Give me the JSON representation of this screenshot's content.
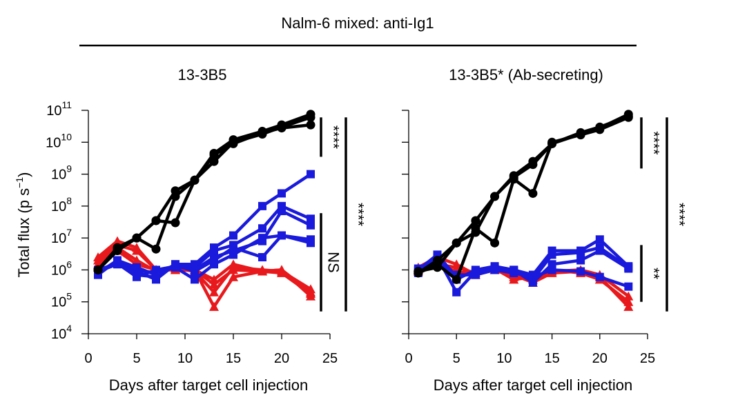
{
  "figure": {
    "title": "Nalm-6 mixed: anti-Ig1",
    "ylabel_main": "Total flux (p s",
    "ylabel_exp": "−1",
    "ylabel_close": ")",
    "xlabel": "Days after target cell injection",
    "colors": {
      "black": "#000000",
      "red": "#e8191c",
      "blue": "#1a1adc"
    }
  },
  "chart_data": [
    {
      "type": "line",
      "title": "13-3B5",
      "xlabel": "Days after target cell injection",
      "ylabel": "Total flux (p s−1)",
      "xlim": [
        0,
        25
      ],
      "ylim": [
        10000,
        100000000000
      ],
      "yscale": "log",
      "xticks": [
        "0",
        "5",
        "10",
        "15",
        "20",
        "25"
      ],
      "yticks": [
        {
          "base": "10",
          "exp": "4"
        },
        {
          "base": "10",
          "exp": "5"
        },
        {
          "base": "10",
          "exp": "6"
        },
        {
          "base": "10",
          "exp": "7"
        },
        {
          "base": "10",
          "exp": "8"
        },
        {
          "base": "10",
          "exp": "9"
        },
        {
          "base": "10",
          "exp": "10"
        },
        {
          "base": "10",
          "exp": "11"
        }
      ],
      "series": [
        {
          "group": "black",
          "marker": "circle",
          "x": [
            1,
            3,
            5,
            7,
            9,
            11,
            13,
            15,
            18,
            20,
            23
          ],
          "y": [
            1000000,
            5000000,
            10000000,
            35000000,
            300000000,
            650000000,
            4500000000,
            12000000000,
            22000000000,
            35000000000,
            75000000000
          ]
        },
        {
          "group": "black",
          "marker": "circle",
          "x": [
            1,
            3,
            5,
            7,
            9,
            11,
            13,
            15,
            18,
            20,
            23
          ],
          "y": [
            1000000,
            4500000,
            10000000,
            4500000,
            200000000,
            650000000,
            2500000000,
            10000000000,
            18000000000,
            30000000000,
            60000000000
          ]
        },
        {
          "group": "black",
          "marker": "circle",
          "x": [
            1,
            3,
            5,
            7,
            9,
            11,
            13,
            15,
            18,
            20,
            23
          ],
          "y": [
            1000000,
            4000000,
            10000000,
            35000000,
            30000000,
            650000000,
            4000000000,
            9000000000,
            20000000000,
            28000000000,
            35000000000
          ]
        },
        {
          "group": "red",
          "marker": "triangle",
          "x": [
            1,
            3,
            5,
            7,
            9,
            11,
            13,
            15,
            18,
            20,
            23
          ],
          "y": [
            2500000,
            8000000,
            5000000,
            1000000,
            1000000,
            1000000,
            350000,
            1000000,
            900000,
            1000000,
            200000
          ]
        },
        {
          "group": "red",
          "marker": "triangle",
          "x": [
            1,
            3,
            5,
            7,
            9,
            11,
            13,
            15,
            18,
            20,
            23
          ],
          "y": [
            2000000,
            6000000,
            4000000,
            1000000,
            1000000,
            1000000,
            70000,
            600000,
            900000,
            800000,
            180000
          ]
        },
        {
          "group": "red",
          "marker": "triangle",
          "x": [
            1,
            3,
            5,
            7,
            9,
            11,
            13,
            15,
            18,
            20,
            23
          ],
          "y": [
            1500000,
            5000000,
            2000000,
            900000,
            1200000,
            1000000,
            500000,
            1500000,
            900000,
            1000000,
            150000
          ]
        },
        {
          "group": "red",
          "marker": "triangle",
          "x": [
            1,
            3,
            5,
            7,
            9,
            11,
            13,
            15,
            18,
            20,
            23
          ],
          "y": [
            1200000,
            4000000,
            1500000,
            1000000,
            1100000,
            900000,
            200000,
            1200000,
            1000000,
            900000,
            250000
          ]
        },
        {
          "group": "blue",
          "marker": "square",
          "x": [
            1,
            3,
            5,
            7,
            9,
            11,
            13,
            15,
            18,
            20,
            23
          ],
          "y": [
            800000,
            2000000,
            1200000,
            700000,
            1500000,
            1500000,
            5000000,
            12000000,
            100000000,
            250000000,
            1000000000
          ]
        },
        {
          "group": "blue",
          "marker": "square",
          "x": [
            1,
            3,
            5,
            7,
            9,
            11,
            13,
            15,
            18,
            20,
            23
          ],
          "y": [
            900000,
            1500000,
            900000,
            500000,
            1500000,
            1200000,
            4000000,
            6000000,
            20000000,
            100000000,
            40000000
          ]
        },
        {
          "group": "blue",
          "marker": "square",
          "x": [
            1,
            3,
            5,
            7,
            9,
            11,
            13,
            15,
            18,
            20,
            23
          ],
          "y": [
            1000000,
            1600000,
            600000,
            1000000,
            1300000,
            1000000,
            2500000,
            4000000,
            8000000,
            70000000,
            25000000
          ]
        },
        {
          "group": "blue",
          "marker": "square",
          "x": [
            1,
            3,
            5,
            7,
            9,
            11,
            13,
            15,
            18,
            20,
            23
          ],
          "y": [
            700000,
            2000000,
            1000000,
            800000,
            1200000,
            500000,
            1500000,
            3000000,
            10000000,
            12000000,
            9000000
          ]
        },
        {
          "group": "blue",
          "marker": "square",
          "x": [
            1,
            3,
            5,
            7,
            9,
            11,
            13,
            15,
            18,
            20,
            23
          ],
          "y": [
            800000,
            1800000,
            700000,
            600000,
            1400000,
            900000,
            2000000,
            5000000,
            2500000,
            12000000,
            7000000
          ]
        }
      ],
      "significance": [
        {
          "label": "****",
          "y_from": 60000000000,
          "y_to": 3500000000,
          "offset": 0
        },
        {
          "label": "NS",
          "y_from": 60000000,
          "y_to": 50000,
          "offset": 0
        },
        {
          "label": "****",
          "y_from": 60000000000,
          "y_to": 50000,
          "offset": 1
        }
      ]
    },
    {
      "type": "line",
      "title": "13-3B5* (Ab-secreting)",
      "xlabel": "Days after target cell injection",
      "ylabel": "Total flux (p s−1)",
      "xlim": [
        0,
        25
      ],
      "ylim": [
        10000,
        100000000000
      ],
      "yscale": "log",
      "xticks": [
        "0",
        "5",
        "10",
        "15",
        "20",
        "25"
      ],
      "series": [
        {
          "group": "black",
          "marker": "circle",
          "x": [
            1,
            3,
            5,
            7,
            9,
            11,
            13,
            15,
            18,
            20,
            23
          ],
          "y": [
            800000,
            2000000,
            7000000,
            35000000,
            200000000,
            900000000,
            2500000000,
            9000000000,
            18000000000,
            28000000000,
            75000000000
          ]
        },
        {
          "group": "black",
          "marker": "circle",
          "x": [
            1,
            3,
            5,
            7,
            9,
            11,
            13,
            15,
            18,
            20,
            23
          ],
          "y": [
            800000,
            1500000,
            500000,
            20000000,
            7000000,
            700000000,
            250000000,
            10000000000,
            17000000000,
            25000000000,
            60000000000
          ]
        },
        {
          "group": "black",
          "marker": "circle",
          "x": [
            1,
            3,
            5,
            7,
            9,
            11,
            13,
            15,
            18,
            20,
            23
          ],
          "y": [
            900000,
            1200000,
            7000000,
            15000000,
            200000000,
            800000000,
            2000000000,
            9000000000,
            20000000000,
            30000000000,
            65000000000
          ]
        },
        {
          "group": "red",
          "marker": "triangle",
          "x": [
            1,
            3,
            5,
            7,
            9,
            11,
            13,
            15,
            18,
            20,
            23
          ],
          "y": [
            1200000,
            2500000,
            1500000,
            700000,
            1000000,
            600000,
            500000,
            900000,
            1000000,
            700000,
            150000
          ]
        },
        {
          "group": "red",
          "marker": "triangle",
          "x": [
            1,
            3,
            5,
            7,
            9,
            11,
            13,
            15,
            18,
            20,
            23
          ],
          "y": [
            1000000,
            2000000,
            800000,
            900000,
            1000000,
            700000,
            400000,
            800000,
            900000,
            600000,
            70000
          ]
        },
        {
          "group": "red",
          "marker": "triangle",
          "x": [
            1,
            3,
            5,
            7,
            9,
            11,
            13,
            15,
            18,
            20,
            23
          ],
          "y": [
            900000,
            1500000,
            1200000,
            800000,
            1100000,
            500000,
            600000,
            1000000,
            800000,
            500000,
            100000
          ]
        },
        {
          "group": "blue",
          "marker": "square",
          "x": [
            1,
            3,
            5,
            7,
            9,
            11,
            13,
            15,
            18,
            20,
            23
          ],
          "y": [
            1000000,
            3000000,
            600000,
            800000,
            1200000,
            1000000,
            700000,
            4000000,
            4000000,
            9000000,
            1300000
          ]
        },
        {
          "group": "blue",
          "marker": "square",
          "x": [
            1,
            3,
            5,
            7,
            9,
            11,
            13,
            15,
            18,
            20,
            23
          ],
          "y": [
            900000,
            2500000,
            200000,
            900000,
            1100000,
            900000,
            500000,
            3000000,
            3500000,
            5000000,
            1200000
          ]
        },
        {
          "group": "blue",
          "marker": "square",
          "x": [
            1,
            3,
            5,
            7,
            9,
            11,
            13,
            15,
            18,
            20,
            23
          ],
          "y": [
            1100000,
            2000000,
            500000,
            1000000,
            1300000,
            1000000,
            400000,
            1500000,
            2000000,
            4000000,
            1100000
          ]
        },
        {
          "group": "blue",
          "marker": "square",
          "x": [
            1,
            3,
            5,
            7,
            9,
            11,
            13,
            15,
            18,
            20,
            23
          ],
          "y": [
            800000,
            1500000,
            700000,
            700000,
            1000000,
            800000,
            600000,
            1000000,
            900000,
            600000,
            300000
          ]
        }
      ],
      "significance": [
        {
          "label": "****",
          "y_from": 60000000000,
          "y_to": 1500000000,
          "offset": 0
        },
        {
          "label": "**",
          "y_from": 6000000,
          "y_to": 100000,
          "offset": 0
        },
        {
          "label": "****",
          "y_from": 60000000000,
          "y_to": 50000,
          "offset": 1
        }
      ]
    }
  ]
}
